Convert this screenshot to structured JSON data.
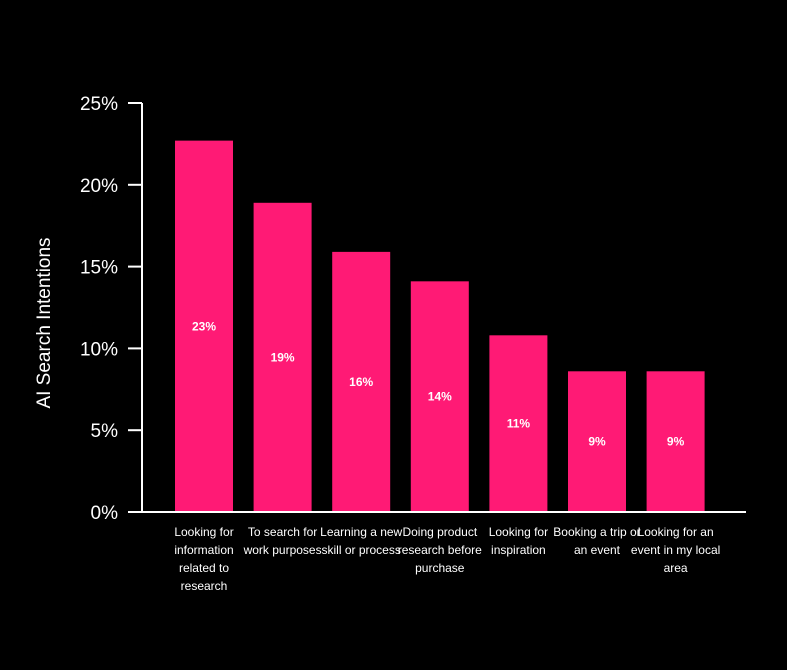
{
  "chart_data": {
    "type": "bar",
    "ylabel": "AI Search Intentions",
    "xlabel": "",
    "ylim": [
      0,
      25
    ],
    "yticks": [
      0,
      5,
      10,
      15,
      20,
      25
    ],
    "ytick_labels": [
      "0%",
      "5%",
      "10%",
      "15%",
      "20%",
      "25%"
    ],
    "grid": false,
    "categories": [
      "Looking for information related to research",
      "To search for work purposes",
      "Learning a new skill or process",
      "Doing product research before purchase",
      "Looking for inspiration",
      "Booking a trip or an event",
      "Looking for an event in my local area"
    ],
    "values": [
      22.7,
      18.9,
      15.9,
      14.1,
      10.8,
      8.6,
      8.6
    ],
    "data_labels": [
      "23%",
      "19%",
      "16%",
      "14%",
      "11%",
      "9%",
      "9%"
    ],
    "bar_color": "#ff1a75",
    "axis_color": "#ffffff",
    "background": "#000000"
  }
}
